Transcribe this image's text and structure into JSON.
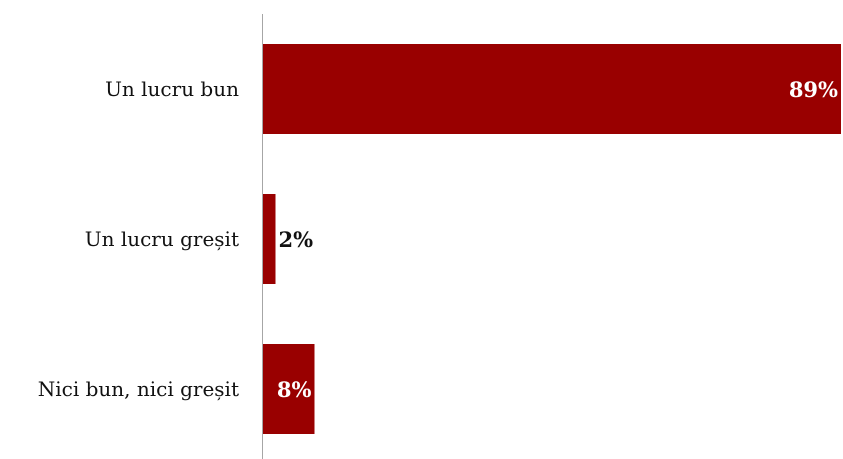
{
  "chart_data": {
    "type": "bar",
    "orientation": "horizontal",
    "categories": [
      "Un lucru bun",
      "Un lucru greșit",
      "Nici bun, nici greșit"
    ],
    "values": [
      89,
      2,
      8
    ],
    "value_labels": [
      "89%",
      "2%",
      "8%"
    ],
    "unit": "%",
    "xlim": [
      0,
      89
    ],
    "grid": false,
    "legend": "none",
    "bar_color": "#990000",
    "label_color_inside": "#ffffff",
    "label_color_outside": "#111111"
  }
}
